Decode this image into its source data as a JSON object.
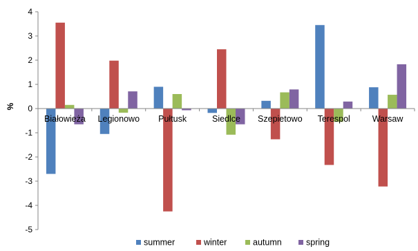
{
  "chart_data": {
    "type": "bar",
    "ylabel": "%",
    "ylim": [
      -5,
      4
    ],
    "y_ticks": [
      "-5",
      "-4",
      "-3",
      "-2",
      "-1",
      "0",
      "1",
      "2",
      "3",
      "4"
    ],
    "grid": false,
    "legend_position": "bottom",
    "categories": [
      "Białowieża",
      "Legionowo",
      "Pułtusk",
      "Siedlce",
      "Szepietowo",
      "Terespol",
      "Warsaw"
    ],
    "series": [
      {
        "name": "summer",
        "color": "#4f81bd",
        "values": [
          -2.7,
          -1.05,
          0.9,
          -0.18,
          0.32,
          3.45,
          0.88
        ]
      },
      {
        "name": "winter",
        "color": "#c0504d",
        "values": [
          3.55,
          1.98,
          -4.25,
          2.45,
          -1.27,
          -2.33,
          -3.22
        ]
      },
      {
        "name": "autumn",
        "color": "#9bbb59",
        "values": [
          0.15,
          -0.17,
          0.6,
          -1.08,
          0.67,
          -0.55,
          0.57
        ]
      },
      {
        "name": "spring",
        "color": "#8064a2",
        "values": [
          -0.65,
          0.71,
          -0.07,
          -0.65,
          0.79,
          0.29,
          1.83
        ]
      }
    ]
  }
}
